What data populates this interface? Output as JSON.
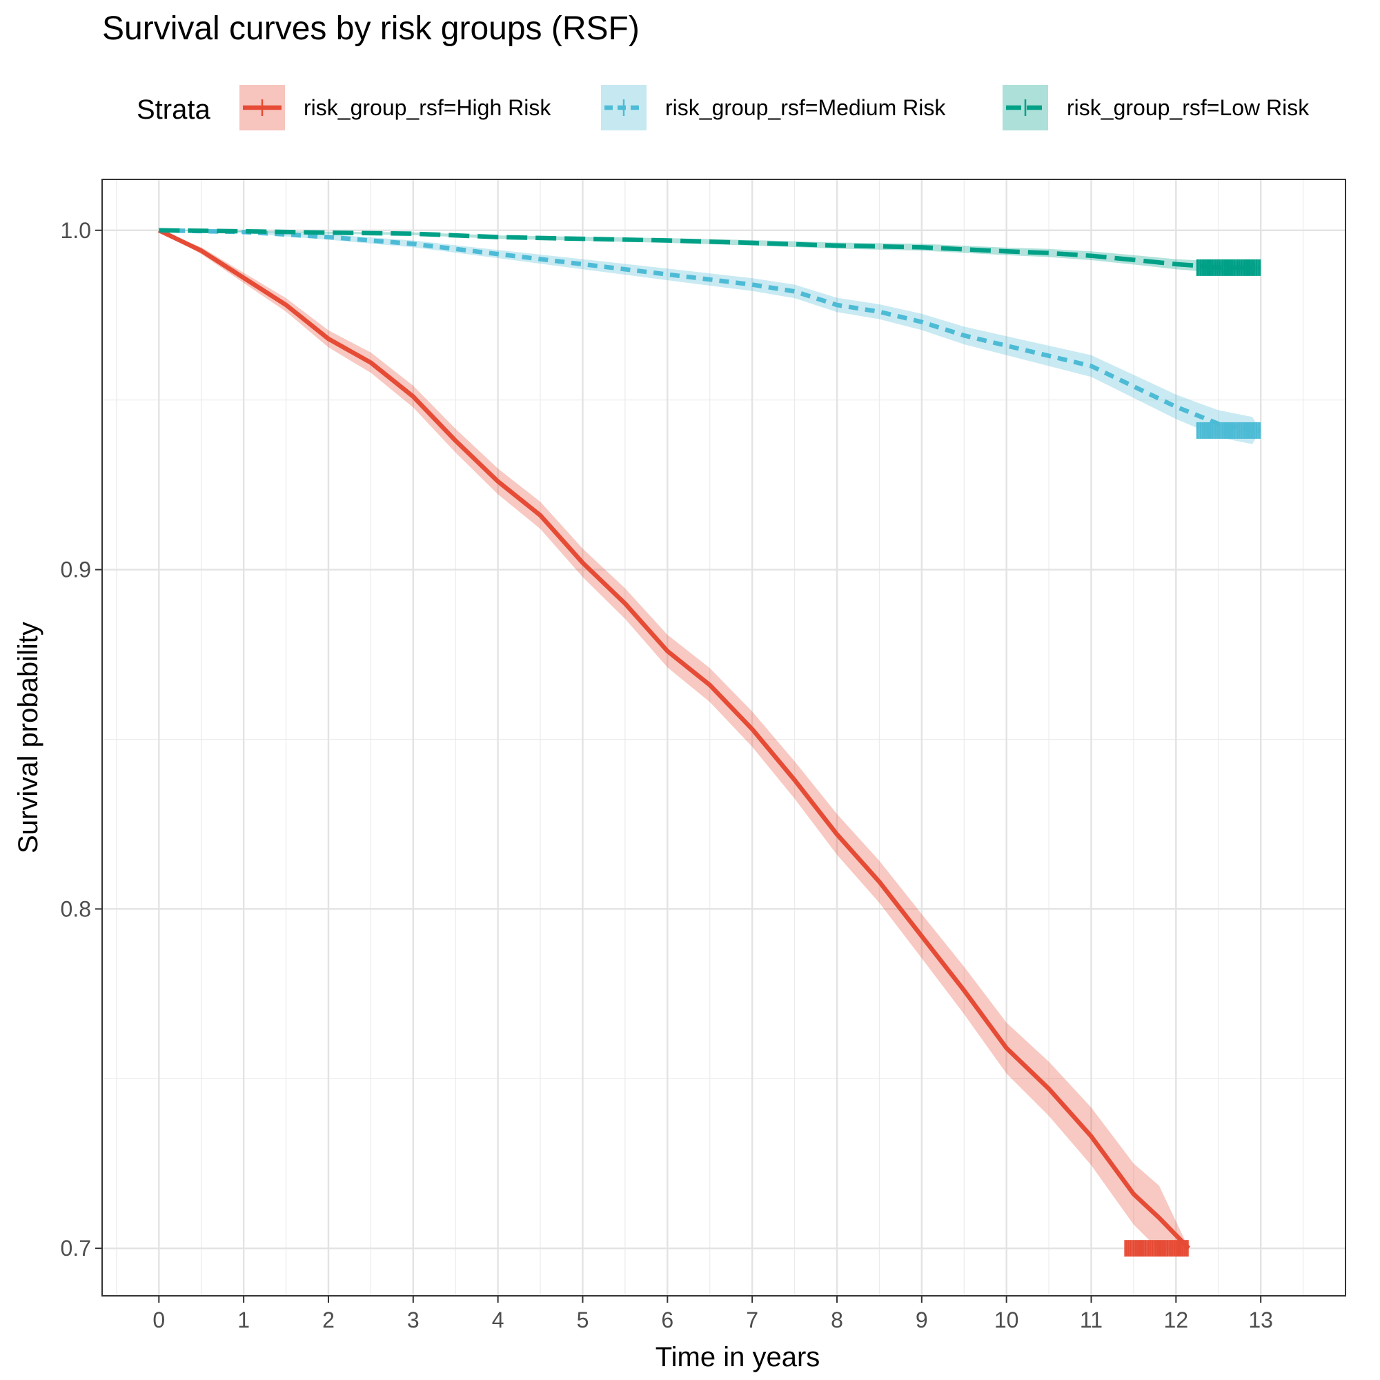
{
  "chart_data": {
    "type": "line",
    "title": "Survival curves by risk groups (RSF)",
    "xlabel": "Time in years",
    "ylabel": "Survival probability",
    "xlim": [
      -0.67,
      14.0
    ],
    "ylim": [
      0.686,
      1.015
    ],
    "x_ticks": [
      0,
      1,
      2,
      3,
      4,
      5,
      6,
      7,
      8,
      9,
      10,
      11,
      12,
      13
    ],
    "y_ticks": [
      0.7,
      0.8,
      0.9,
      1.0
    ],
    "y_tick_labels": [
      "0.7",
      "0.8",
      "0.9",
      "1.0"
    ],
    "grid": true,
    "legend": {
      "title": "Strata",
      "position": "top",
      "entries": [
        "risk_group_rsf=High Risk",
        "risk_group_rsf=Medium Risk",
        "risk_group_rsf=Low Risk"
      ]
    },
    "series": [
      {
        "name": "risk_group_rsf=High Risk",
        "color": "#E64B35",
        "dash": "solid",
        "x": [
          0,
          0.5,
          1,
          1.5,
          2,
          2.5,
          3,
          3.5,
          4,
          4.5,
          5,
          5.5,
          6,
          6.5,
          7,
          7.5,
          8,
          8.5,
          9,
          9.5,
          10,
          10.5,
          11,
          11.5,
          11.8,
          12.15
        ],
        "y": [
          1.0,
          0.994,
          0.986,
          0.978,
          0.968,
          0.961,
          0.951,
          0.938,
          0.926,
          0.916,
          0.902,
          0.89,
          0.876,
          0.866,
          0.853,
          0.838,
          0.822,
          0.808,
          0.792,
          0.776,
          0.759,
          0.747,
          0.733,
          0.716,
          0.709,
          0.7
        ],
        "ci_half_width": [
          0,
          0.001,
          0.0015,
          0.002,
          0.0025,
          0.003,
          0.0032,
          0.0035,
          0.0038,
          0.004,
          0.0042,
          0.0045,
          0.0048,
          0.005,
          0.0052,
          0.0055,
          0.006,
          0.0062,
          0.0065,
          0.007,
          0.0075,
          0.008,
          0.0085,
          0.009,
          0.0095,
          0.0
        ]
      },
      {
        "name": "risk_group_rsf=Medium Risk",
        "color": "#4DBBD5",
        "dash": "short-dash",
        "x": [
          0,
          1,
          2,
          3,
          4,
          5,
          6,
          7,
          7.5,
          8,
          8.5,
          9,
          9.5,
          10,
          10.5,
          11,
          11.5,
          12,
          12.3,
          12.5,
          12.9,
          13.0
        ],
        "y": [
          1.0,
          0.9995,
          0.998,
          0.996,
          0.993,
          0.99,
          0.987,
          0.984,
          0.982,
          0.978,
          0.976,
          0.973,
          0.969,
          0.966,
          0.963,
          0.96,
          0.954,
          0.948,
          0.945,
          0.943,
          0.941,
          0.941
        ],
        "ci_half_width": [
          0,
          0.0003,
          0.0008,
          0.001,
          0.0012,
          0.0015,
          0.0017,
          0.0019,
          0.002,
          0.0021,
          0.0022,
          0.0024,
          0.0026,
          0.0028,
          0.003,
          0.0032,
          0.0034,
          0.0036,
          0.0038,
          0.004,
          0.004,
          0.0
        ]
      },
      {
        "name": "risk_group_rsf=Low Risk",
        "color": "#00A087",
        "dash": "long-dash",
        "x": [
          0,
          1,
          2,
          3,
          4,
          5,
          6,
          7,
          8,
          9,
          10,
          10.5,
          11,
          11.5,
          12,
          12.3,
          12.5,
          12.9,
          13.0
        ],
        "y": [
          1.0,
          0.9997,
          0.9993,
          0.999,
          0.998,
          0.9975,
          0.997,
          0.9963,
          0.9955,
          0.995,
          0.9938,
          0.9933,
          0.9925,
          0.9913,
          0.99,
          0.9895,
          0.989,
          0.989,
          0.989
        ],
        "ci_half_width": [
          0,
          0.0002,
          0.0003,
          0.0004,
          0.0005,
          0.0006,
          0.0007,
          0.0008,
          0.0009,
          0.001,
          0.0011,
          0.0012,
          0.0013,
          0.0014,
          0.0015,
          0.0016,
          0.0017,
          0.0017,
          0.0
        ]
      }
    ]
  }
}
